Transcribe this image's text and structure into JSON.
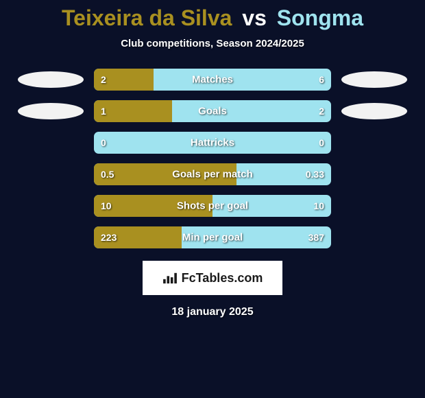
{
  "title": {
    "player1": "Teixeira da Silva",
    "vs": "vs",
    "player2": "Songma",
    "player1_color": "#a99020",
    "player2_color": "#9fe3ef"
  },
  "subtitle": "Club competitions, Season 2024/2025",
  "background_color": "#0a1028",
  "bar": {
    "left_color": "#a99020",
    "right_color": "#9fe3ef",
    "height": 32,
    "radius": 7
  },
  "badge_ellipse_color": "#f2f2f2",
  "stats": [
    {
      "label": "Matches",
      "left_val": "2",
      "right_val": "6",
      "left_ratio": 0.25,
      "show_badges": true
    },
    {
      "label": "Goals",
      "left_val": "1",
      "right_val": "2",
      "left_ratio": 0.33,
      "show_badges": true
    },
    {
      "label": "Hattricks",
      "left_val": "0",
      "right_val": "0",
      "left_ratio": 0.0,
      "show_badges": false
    },
    {
      "label": "Goals per match",
      "left_val": "0.5",
      "right_val": "0.33",
      "left_ratio": 0.6,
      "show_badges": false
    },
    {
      "label": "Shots per goal",
      "left_val": "10",
      "right_val": "10",
      "left_ratio": 0.5,
      "show_badges": false
    },
    {
      "label": "Min per goal",
      "left_val": "223",
      "right_val": "387",
      "left_ratio": 0.37,
      "show_badges": false
    }
  ],
  "logo": {
    "text": "FcTables.com"
  },
  "date": "18 january 2025"
}
